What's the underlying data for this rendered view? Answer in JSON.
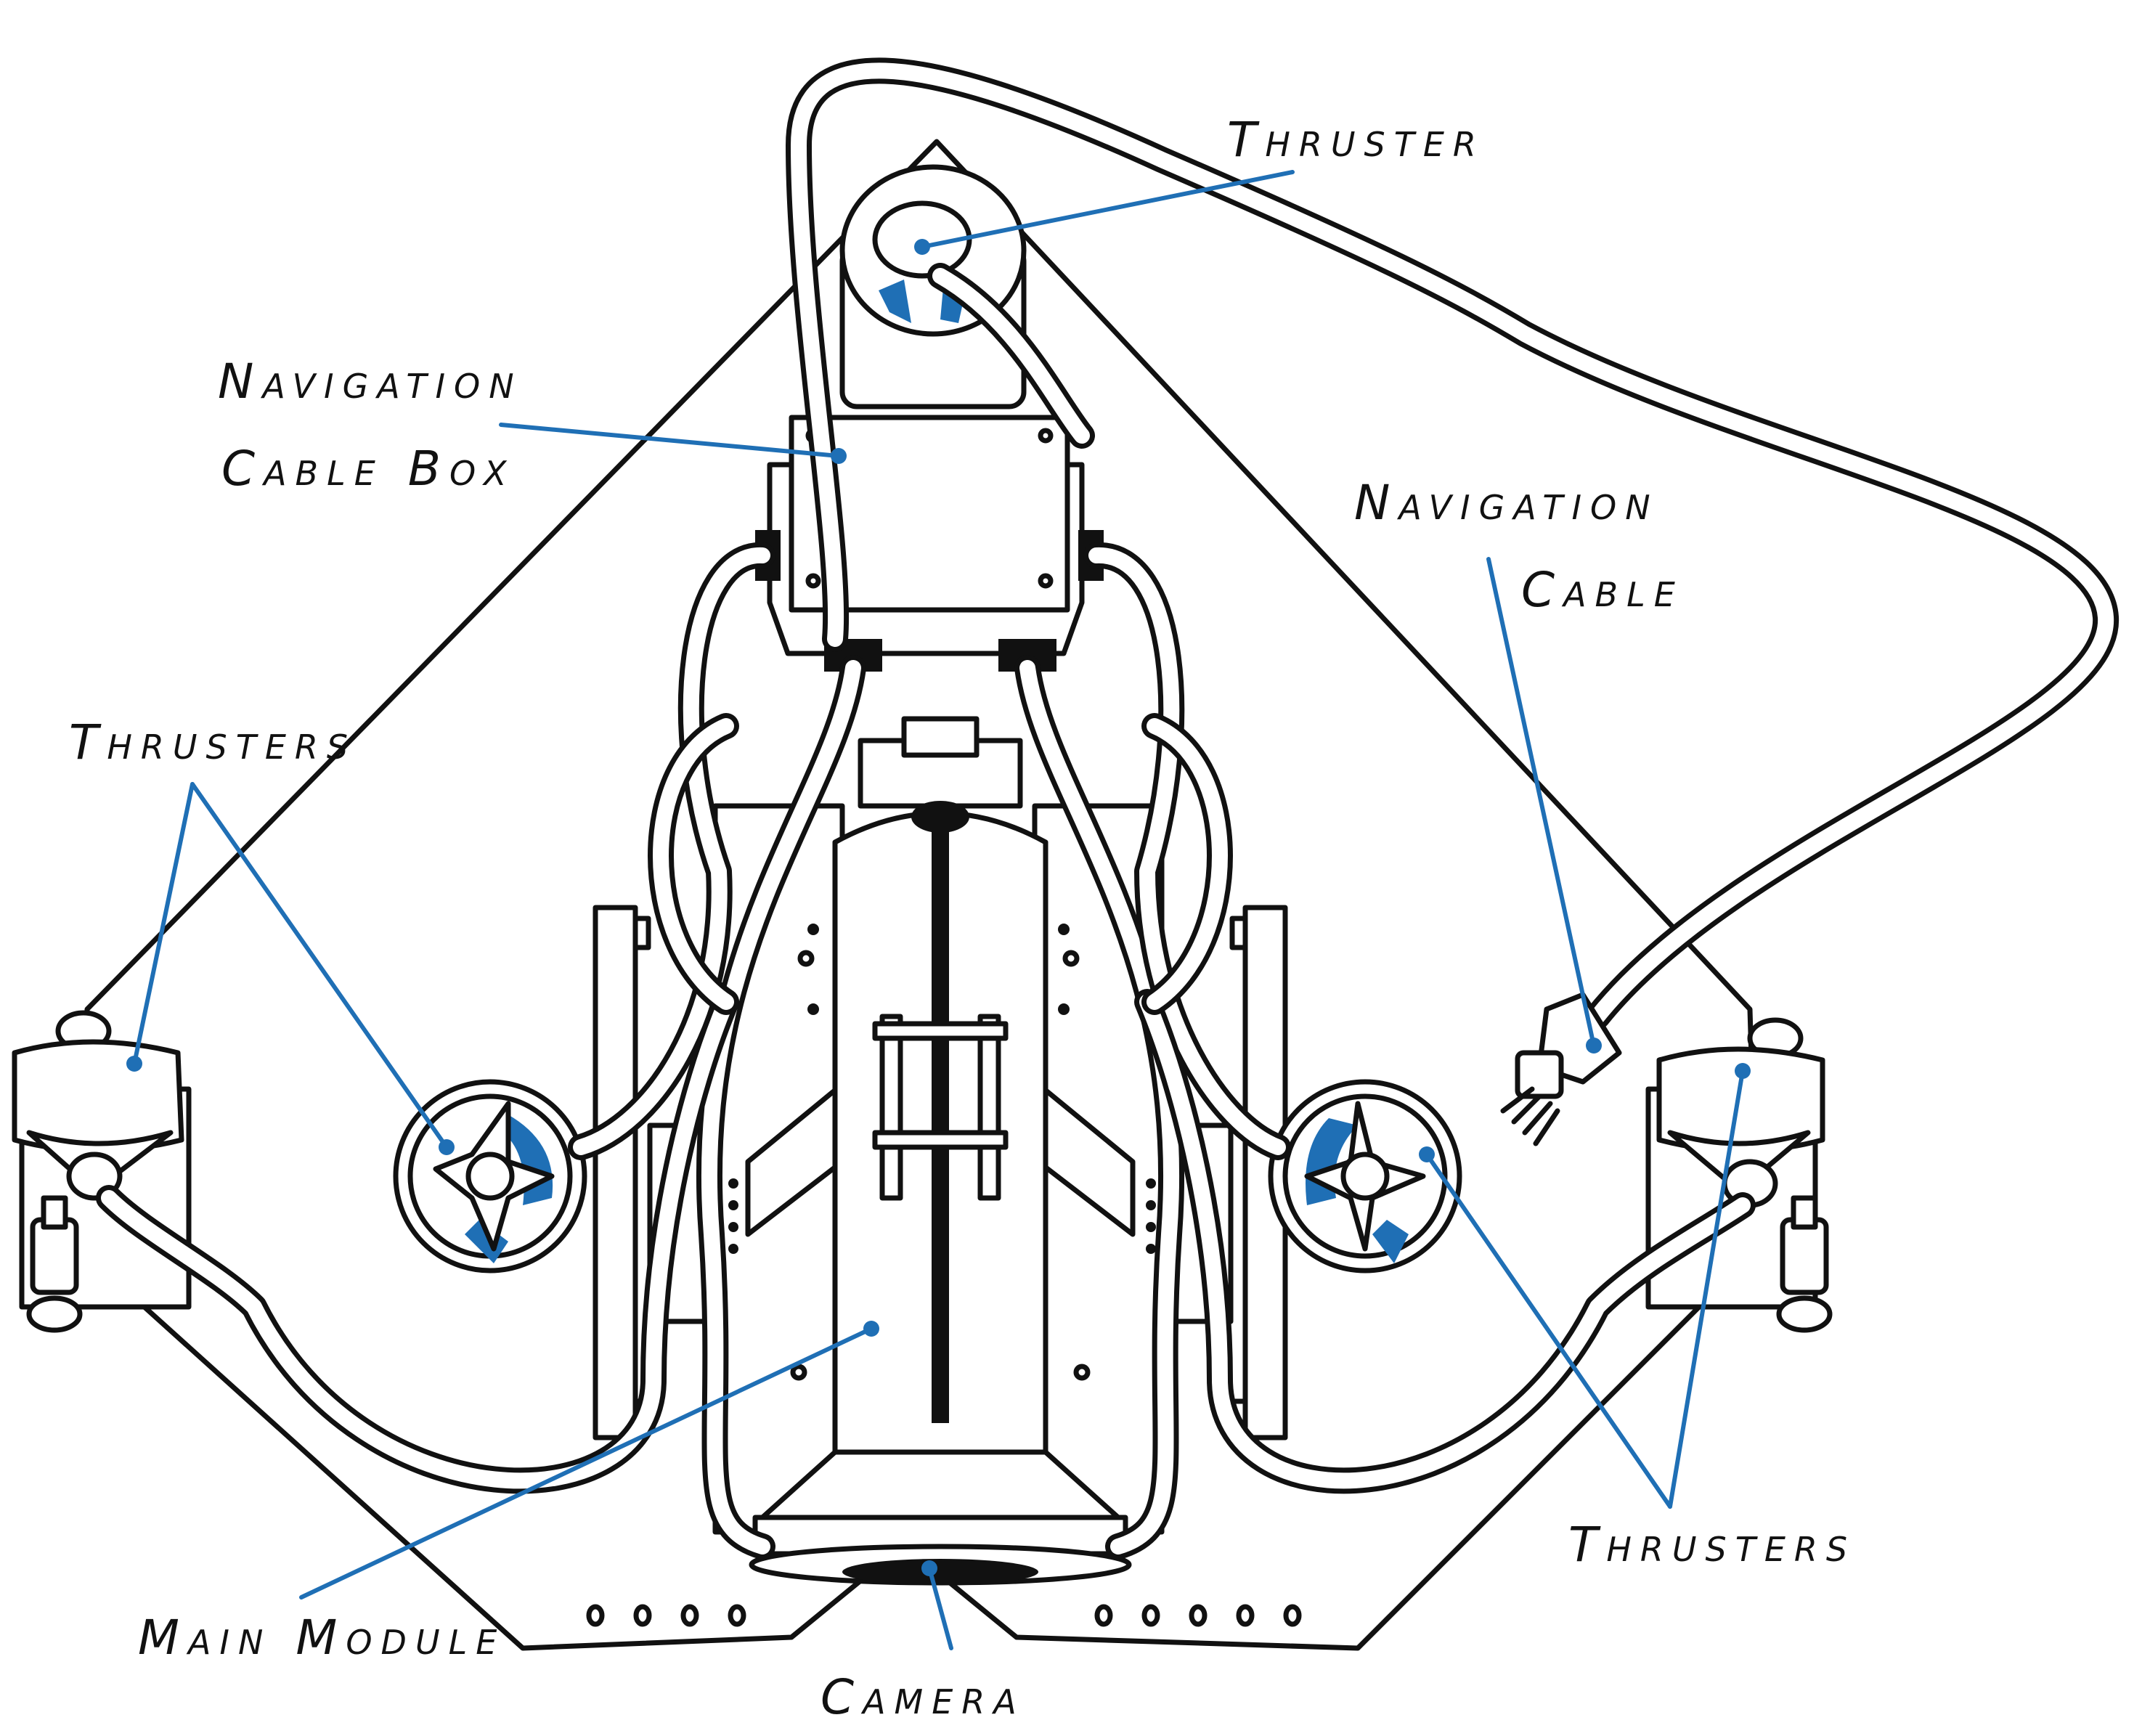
{
  "labels": {
    "thruster_top": "Thruster",
    "nav_cable_box_line1": "Navigation",
    "nav_cable_box_line2": "Cable Box",
    "nav_cable_line1": "Navigation",
    "nav_cable_line2": "Cable",
    "thrusters_left": "Thrusters",
    "thrusters_right": "Thrusters",
    "main_module": "Main Module",
    "camera": "Camera"
  },
  "colors": {
    "accent": "#1f6fb5",
    "outline": "#111111",
    "background": "#ffffff"
  }
}
